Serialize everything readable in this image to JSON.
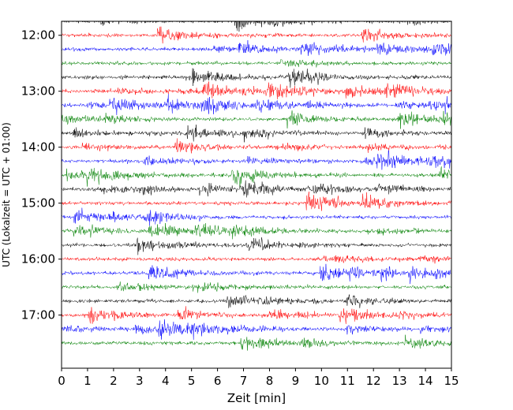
{
  "chart_data": {
    "type": "line",
    "title": "",
    "xlabel": "Zeit  [min]",
    "ylabel": "UTC (Lokalzeit = UTC + 01:00)",
    "xlim": [
      0,
      15
    ],
    "x_ticks": [
      "0",
      "1",
      "2",
      "3",
      "4",
      "5",
      "6",
      "7",
      "8",
      "9",
      "10",
      "11",
      "12",
      "13",
      "14",
      "15"
    ],
    "y_ticks": [
      {
        "label": "12:00",
        "hour": 12.0
      },
      {
        "label": "13:00",
        "hour": 13.0
      },
      {
        "label": "14:00",
        "hour": 14.0
      },
      {
        "label": "15:00",
        "hour": 15.0
      },
      {
        "label": "16:00",
        "hour": 16.0
      },
      {
        "label": "17:00",
        "hour": 17.0
      }
    ],
    "ylim_hours": [
      11.75,
      17.95
    ],
    "y_inverted": true,
    "trace_interval_minutes": 15,
    "trace_start_hour": 11.75,
    "trace_count": 24,
    "trace_colors": [
      "#000000",
      "#ff0000",
      "#0000ff",
      "#008000"
    ],
    "grid": false,
    "legend": "none"
  }
}
